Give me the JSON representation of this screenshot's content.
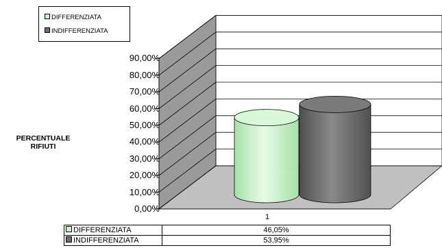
{
  "colors": {
    "differenziata": "#c8f5c8",
    "indifferenziata": "#6e6e6e",
    "wall": "#9a9a9a",
    "floor": "#c0c0c0"
  },
  "chart_data": {
    "type": "bar",
    "style": "3d-cylinder",
    "title": "",
    "xlabel": "",
    "ylabel": "PERCENTUALE RIFIUTI",
    "categories": [
      "1"
    ],
    "series": [
      {
        "name": "DIFFERENZIATA",
        "values": [
          46.05
        ]
      },
      {
        "name": "INDIFFERENZIATA",
        "values": [
          53.95
        ]
      }
    ],
    "ylim": [
      0,
      90
    ],
    "ytick_labels": [
      "90,00%",
      "80,00%",
      "70,00%",
      "60,00%",
      "50,00%",
      "40,00%",
      "30,00%",
      "20,00%",
      "10,00%",
      "0,00%"
    ],
    "data_table": [
      {
        "label": "DIFFERENZIATA",
        "value": "46,05%"
      },
      {
        "label": "INDIFFERENZIATA",
        "value": "53,95%"
      }
    ],
    "legend": "top-left",
    "grid": true
  }
}
